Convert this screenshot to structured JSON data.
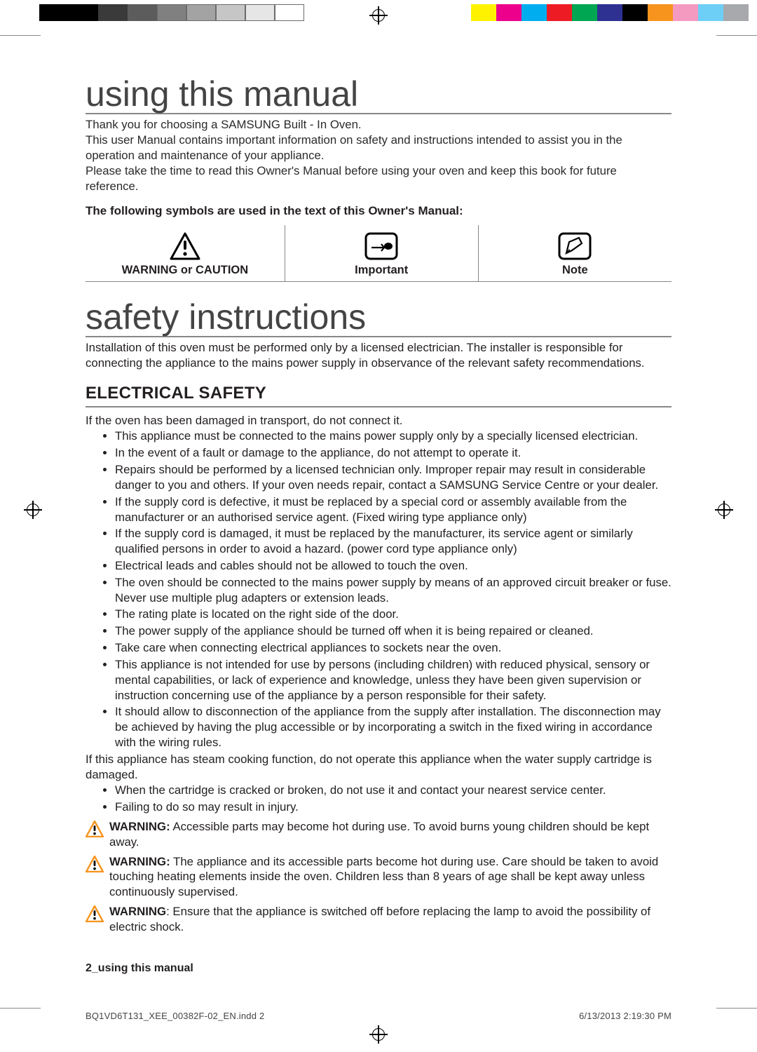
{
  "printer_bar": {
    "left_greys": [
      "#000000",
      "#000000",
      "#3a3a3a",
      "#5c5c5c",
      "#808080",
      "#a3a3a3",
      "#c6c6c6",
      "#e6e6e6",
      "#ffffff"
    ],
    "left_border": "#6b6b6b",
    "right_colors": [
      "#fff200",
      "#ec008c",
      "#00aeef",
      "#ed1c24",
      "#00a651",
      "#2e3192",
      "#000000",
      "#f7941d",
      "#f49ac1",
      "#6dcff6",
      "#a7a9ac"
    ]
  },
  "headings": {
    "h1_using": "using this manual",
    "h1_safety": "safety instructions",
    "h2_electrical": "ELECTRICAL SAFETY"
  },
  "intro_lines": [
    "Thank you for choosing a SAMSUNG Built - In Oven.",
    "This user Manual contains important information on safety and instructions intended to assist you in the operation and maintenance of your appliance.",
    "Please take the time to read this Owner's Manual before using your oven and keep this book for future reference."
  ],
  "symbols_lead": "The following symbols are used in the text of this Owner's Manual:",
  "symbol_table": {
    "col_widths_pct": [
      34,
      33,
      33
    ],
    "icons": [
      "warning-triangle",
      "pointing-hand-box",
      "note-pencil-box"
    ],
    "labels": [
      "WARNING or CAUTION",
      "Important",
      "Note"
    ]
  },
  "safety_intro": "Installation of this oven must be performed only by a licensed electrician. The installer is responsible for connecting the appliance to the mains power supply in observance of the relevant safety recommendations.",
  "electrical": {
    "lead": "If the oven has been damaged in transport, do not connect it.",
    "bullets1": [
      "This appliance must be connected to the mains power supply only by a specially licensed electrician.",
      "In the event of a fault or damage to the appliance, do not attempt to operate it.",
      "Repairs should be performed by a licensed technician only. Improper repair may result in considerable danger to you and others. If your oven needs repair, contact a SAMSUNG Service Centre or your dealer.",
      "If the supply cord is defective, it must be replaced by a special cord or assembly available from the manufacturer or an authorised service agent. (Fixed wiring type appliance only)",
      "If the supply cord is damaged, it must be replaced by the manufacturer, its service agent or similarly qualified persons in order to avoid a hazard. (power cord type appliance only)",
      "Electrical leads and cables should not be allowed to touch the oven.",
      "The oven should be connected to the mains power supply by means of an approved circuit breaker or fuse. Never use multiple plug adapters or extension leads.",
      "The rating plate is located on the right side of the door.",
      "The power supply of the appliance should be turned off when it is being repaired or cleaned.",
      "Take care when connecting electrical appliances to sockets near the oven.",
      "This appliance is not intended for use by persons (including children) with reduced physical, sensory or mental capabilities, or lack of experience and knowledge, unless they have been given supervision or instruction concerning use of the appliance by a person responsible for their safety.",
      "It should allow to disconnection of the appliance from the supply after installation. The disconnection may be achieved by having the plug accessible or by incorporating a switch in the fixed wiring in accordance with the wiring rules."
    ],
    "steam_line": "If this appliance has steam cooking function, do not operate this appliance when the water supply cartridge is damaged.",
    "bullets2": [
      "When the cartridge is cracked or broken, do not use it and contact your nearest service center.",
      "Failing to do so may result in injury."
    ],
    "warnings": [
      {
        "label": "WARNING:",
        "text": " Accessible parts may become hot during use. To avoid burns young children should be kept away."
      },
      {
        "label": "WARNING:",
        "text": " The appliance and its accessible parts become hot during use. Care should be taken to avoid touching heating elements inside the oven. Children less than 8 years of age shall be kept away unless continuously supervised."
      },
      {
        "label": "WARNING",
        "text": ": Ensure that the appliance is switched off before replacing the lamp to avoid the possibility of electric shock."
      }
    ]
  },
  "footer_section": "2_using this manual",
  "indd": {
    "file": "BQ1VD6T131_XEE_00382F-02_EN.indd   2",
    "stamp": "6/13/2013   2:19:30 PM"
  },
  "colors": {
    "rule": "#8a8a8a",
    "text": "#231f20",
    "warn_orange": "#f7941d"
  }
}
